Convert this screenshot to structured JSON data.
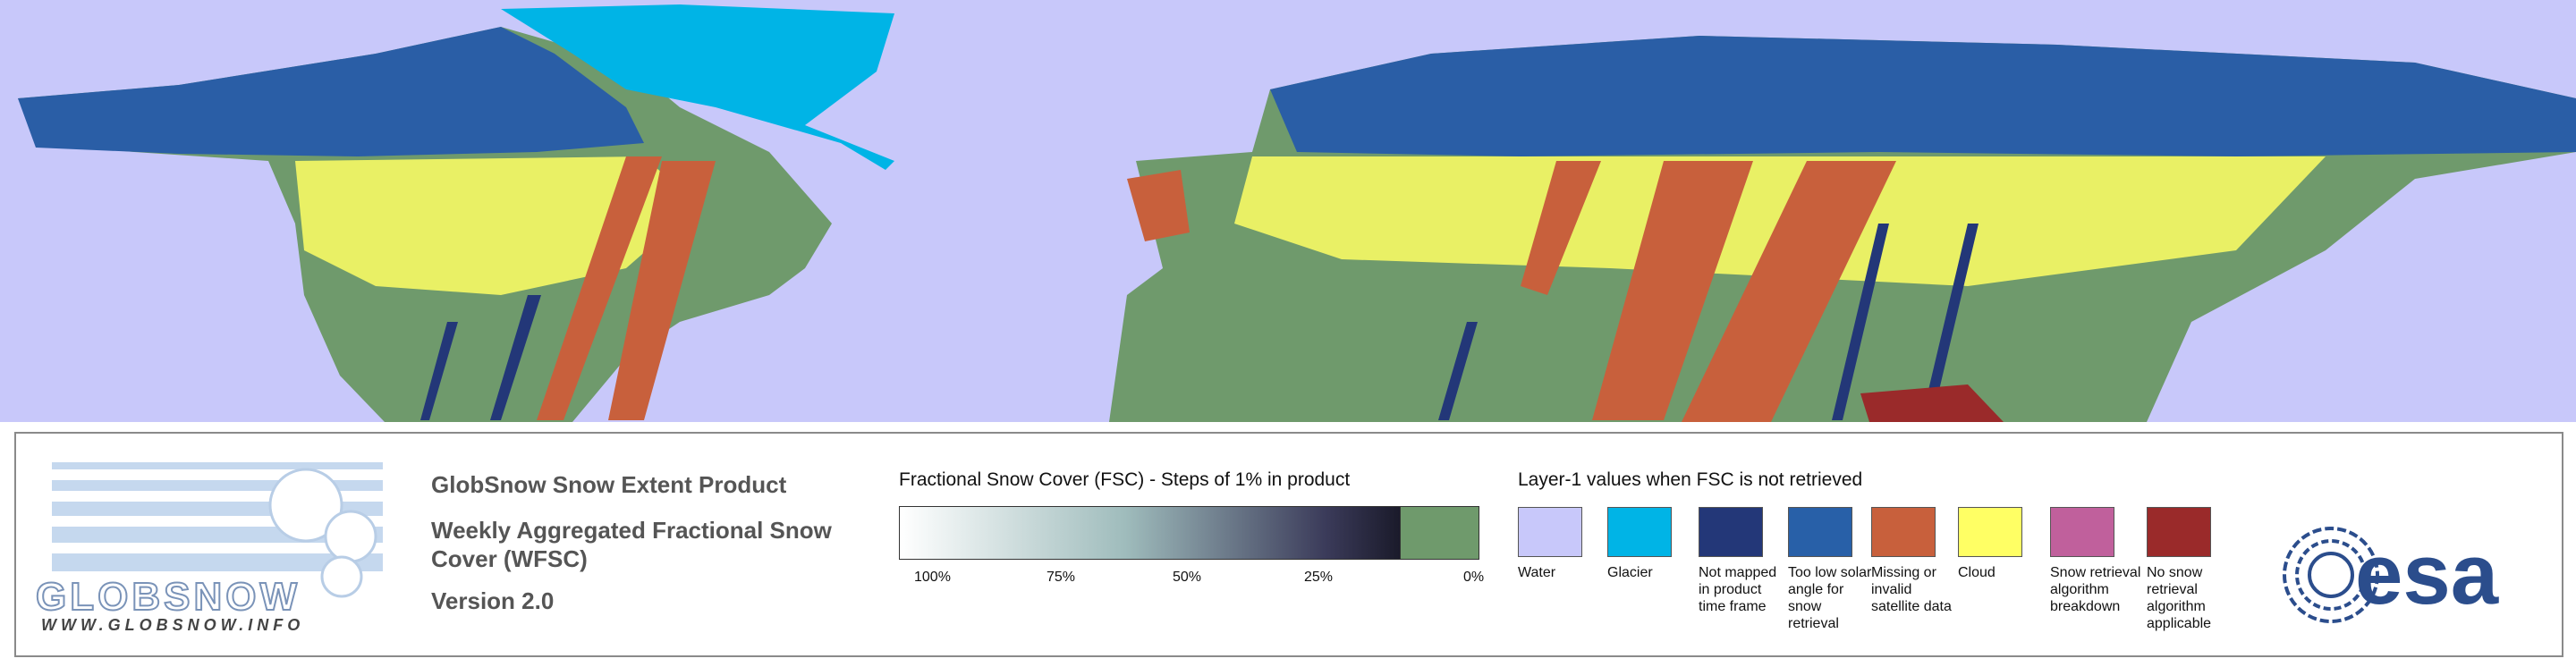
{
  "logo": {
    "name": "GLOBSNOW",
    "url": "WWW.GLOBSNOW.INFO"
  },
  "product": {
    "title": "GlobSnow Snow Extent Product",
    "subtitle": "Weekly Aggregated Fractional Snow Cover (WFSC)",
    "version": "Version 2.0"
  },
  "fsc_legend": {
    "title": "Fractional Snow Cover (FSC) - Steps of 1% in product",
    "tick_labels": [
      "100%",
      "75%",
      "50%",
      "25%",
      "0%"
    ]
  },
  "layer1_legend": {
    "title": "Layer-1 values when FSC is not retrieved",
    "items": [
      {
        "label": "Water",
        "color": "#c8c8fa"
      },
      {
        "label": "Glacier",
        "color": "#00b4e6"
      },
      {
        "label": "Not mapped in product time frame",
        "color": "#233778"
      },
      {
        "label": "Too low solar angle for snow retrieval",
        "color": "#2860a8"
      },
      {
        "label": "Missing or invalid satellite data",
        "color": "#c8603c"
      },
      {
        "label": "Cloud",
        "color": "#ffff64"
      },
      {
        "label": "Snow retrieval algorithm breakdown",
        "color": "#c0609c"
      },
      {
        "label": "No snow retrieval algorithm applicable",
        "color": "#9a2a2a"
      }
    ]
  },
  "esa_logo": "esa"
}
